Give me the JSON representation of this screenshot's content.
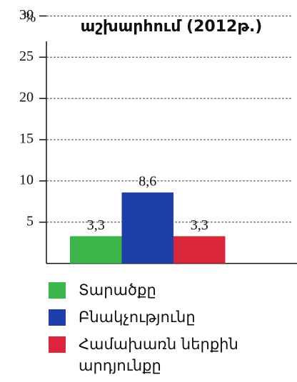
{
  "chart_data": {
    "type": "bar",
    "title": "աշխարհում (2012թ.)",
    "y_label": "%",
    "categories": [
      "Տարածքը",
      "Բնակչությունը",
      "Համախառն ներքին արդյունքը"
    ],
    "values": [
      3.3,
      8.6,
      3.3
    ],
    "value_labels": [
      "3,3",
      "8,6",
      "3,3"
    ],
    "colors": [
      "#3cb54a",
      "#1f3fa8",
      "#d9263a"
    ],
    "ylim": [
      0,
      30
    ],
    "yticks": [
      5,
      10,
      15,
      20,
      25,
      30
    ],
    "grid": true
  }
}
